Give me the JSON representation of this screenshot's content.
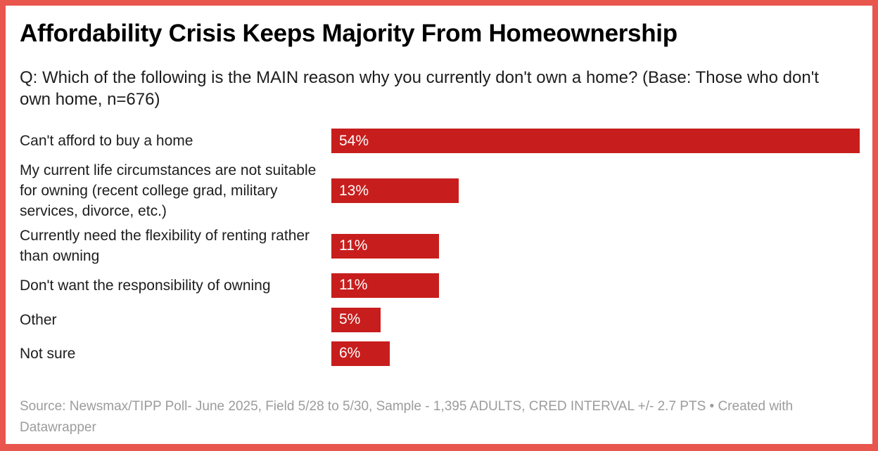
{
  "frame": {
    "border_color": "#e8564d",
    "background_color": "#ffffff"
  },
  "header": {
    "title": "Affordability Crisis Keeps Majority From Homeownership",
    "subtitle": "Q: Which of the following is the MAIN reason why you currently don't own a home? (Base: Those who don't own home, n=676)"
  },
  "chart_data": {
    "type": "bar",
    "orientation": "horizontal",
    "title": "Affordability Crisis Keeps Majority From Homeownership",
    "subtitle": "Q: Which of the following is the MAIN reason why you currently don't own a home? (Base: Those who don't own home, n=676)",
    "categories": [
      "Can't afford to buy a home",
      "My current life circumstances are not suitable for owning (recent college grad, military services, divorce, etc.)",
      "Currently need the flexibility of renting rather than owning",
      "Don't want the responsibility of owning",
      "Other",
      "Not sure"
    ],
    "values": [
      54,
      13,
      11,
      11,
      5,
      6
    ],
    "value_labels": [
      "54%",
      "13%",
      "11%",
      "11%",
      "5%",
      "6%"
    ],
    "xlabel": "",
    "ylabel": "",
    "xlim": [
      0,
      54
    ],
    "xmax": 54,
    "grid": false,
    "legend_position": "none",
    "bar_color": "#c71e1d",
    "value_label_color": "#ffffff"
  },
  "footer": {
    "source": "Source: Newsmax/TIPP Poll- June 2025, Field 5/28 to 5/30, Sample - 1,395 ADULTS, CRED INTERVAL +/- 2.7 PTS • Created with Datawrapper"
  }
}
